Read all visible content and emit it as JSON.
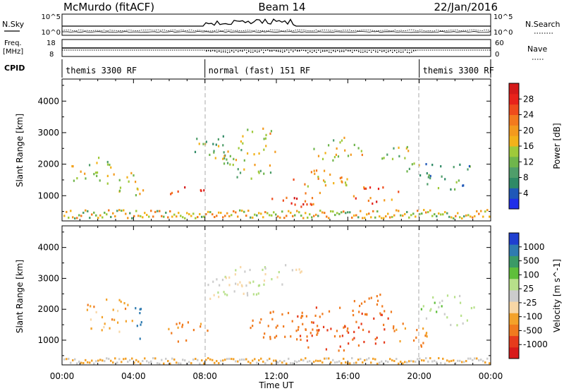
{
  "header": {
    "station": "McMurdo (fitACF)",
    "beam": "Beam 14",
    "date": "22/Jan/2016"
  },
  "strip_labels": {
    "nsky": "N.Sky",
    "freq_line1": "Freq.",
    "freq_line2": "[MHz]",
    "cpid": "CPID",
    "nsearch": "N.Search",
    "nave": "Nave",
    "nsky_top": "10^5",
    "nsky_bottom": "10^0",
    "nsearch_top": "10^5",
    "nsearch_bottom": "10^0",
    "freq_top": "18",
    "freq_bottom": "8",
    "nave_top": "60",
    "nave_bottom": "0"
  },
  "cpid_segments": [
    {
      "label": "themis 3300 RF",
      "start_h": 0,
      "end_h": 8
    },
    {
      "label": "normal (fast) 151 RF",
      "start_h": 8,
      "end_h": 20
    },
    {
      "label": "themis 3300 RF",
      "start_h": 20,
      "end_h": 24
    }
  ],
  "colors": {
    "power": [
      "#1f2ee8",
      "#1f58b8",
      "#2f8a66",
      "#4f9e6a",
      "#6fb54c",
      "#9fc93a",
      "#f2b21a",
      "#f39a1e",
      "#f37a1e",
      "#ef4c1c",
      "#e8231b",
      "#d41a1a"
    ],
    "velocity": [
      "#d81a1a",
      "#e63b1c",
      "#f07a1e",
      "#f3a22a",
      "#f8d7a6",
      "#cccccc",
      "#b7e08a",
      "#5fbf3a",
      "#3a9a66",
      "#2f7bb0",
      "#1f3fd0"
    ]
  },
  "chart_data": [
    {
      "type": "heatmap",
      "name": "power",
      "xlabel": "",
      "ylabel": "Slant Range [km]",
      "xlim": [
        0,
        24
      ],
      "ylim": [
        200,
        4700
      ],
      "yticks": [
        "1000",
        "2000",
        "3000",
        "4000"
      ],
      "colorbar": {
        "label": "Power [dB]",
        "ticks": [
          "28",
          "24",
          "20",
          "16",
          "12",
          "8",
          "4"
        ],
        "range": [
          0,
          32
        ]
      },
      "echo_regions": [
        {
          "t": 1.5,
          "r": 1800,
          "dt": 1.6,
          "dr": 600,
          "level": 14
        },
        {
          "t": 3.5,
          "r": 1400,
          "dt": 1.5,
          "dr": 500,
          "level": 16
        },
        {
          "t": 7.0,
          "r": 1100,
          "dt": 1.2,
          "dr": 300,
          "level": 26
        },
        {
          "t": 8.5,
          "r": 2600,
          "dt": 1.6,
          "dr": 500,
          "level": 12
        },
        {
          "t": 10.5,
          "r": 2100,
          "dt": 2.0,
          "dr": 700,
          "level": 14
        },
        {
          "t": 11.0,
          "r": 2900,
          "dt": 1.5,
          "dr": 400,
          "level": 18
        },
        {
          "t": 12.8,
          "r": 900,
          "dt": 1.6,
          "dr": 300,
          "level": 27
        },
        {
          "t": 13.6,
          "r": 700,
          "dt": 1.2,
          "dr": 250,
          "level": 25
        },
        {
          "t": 14.5,
          "r": 1500,
          "dt": 2.0,
          "dr": 500,
          "level": 20
        },
        {
          "t": 15.5,
          "r": 2500,
          "dt": 1.8,
          "dr": 500,
          "level": 16
        },
        {
          "t": 17.5,
          "r": 1000,
          "dt": 1.8,
          "dr": 400,
          "level": 24
        },
        {
          "t": 19.0,
          "r": 2200,
          "dt": 1.4,
          "dr": 500,
          "level": 14
        },
        {
          "t": 21.5,
          "r": 1700,
          "dt": 2.0,
          "dr": 600,
          "level": 10
        }
      ]
    },
    {
      "type": "heatmap",
      "name": "velocity",
      "xlabel": "Time UT",
      "ylabel": "Slant Range [km]",
      "xlim": [
        0,
        24
      ],
      "ylim": [
        200,
        4700
      ],
      "yticks": [
        "1000",
        "2000",
        "3000",
        "4000"
      ],
      "xticks": [
        "00:00",
        "04:00",
        "08:00",
        "12:00",
        "16:00",
        "20:00",
        "00:00"
      ],
      "colorbar": {
        "label": "Velocity [m s^-1]",
        "ticks": [
          "1000",
          "500",
          "100",
          "25",
          "-25",
          "-100",
          "-500",
          "-1000"
        ]
      },
      "echo_regions": [
        {
          "t": 2.5,
          "r": 1800,
          "dt": 1.8,
          "dr": 700,
          "level": -150
        },
        {
          "t": 4.2,
          "r": 1700,
          "dt": 0.4,
          "dr": 800,
          "level": 600
        },
        {
          "t": 7.0,
          "r": 1300,
          "dt": 1.4,
          "dr": 400,
          "level": -250
        },
        {
          "t": 9.5,
          "r": 2700,
          "dt": 2.0,
          "dr": 600,
          "level": 0
        },
        {
          "t": 11.5,
          "r": 3100,
          "dt": 2.5,
          "dr": 500,
          "level": 0
        },
        {
          "t": 12.5,
          "r": 1500,
          "dt": 2.5,
          "dr": 600,
          "level": -400
        },
        {
          "t": 15.5,
          "r": 1400,
          "dt": 3.5,
          "dr": 900,
          "level": -500
        },
        {
          "t": 17.5,
          "r": 2200,
          "dt": 1.5,
          "dr": 500,
          "level": -300
        },
        {
          "t": 19.5,
          "r": 1200,
          "dt": 1.5,
          "dr": 500,
          "level": -200
        },
        {
          "t": 21.5,
          "r": 2000,
          "dt": 2.0,
          "dr": 600,
          "level": 60
        }
      ]
    }
  ]
}
